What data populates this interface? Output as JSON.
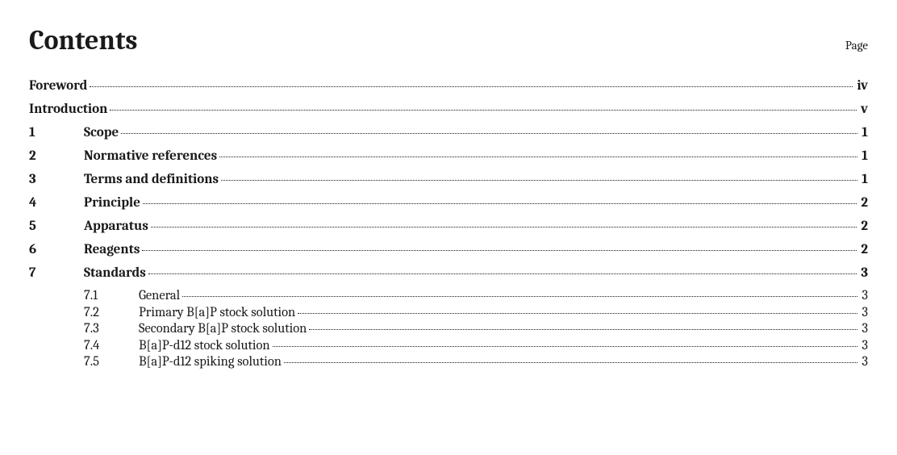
{
  "header": {
    "title": "Contents",
    "page_label": "Page"
  },
  "toc": [
    {
      "num": "",
      "title": "Foreword",
      "page": "iv"
    },
    {
      "num": "",
      "title": "Introduction",
      "page": "v"
    },
    {
      "num": "1",
      "title": "Scope",
      "page": "1"
    },
    {
      "num": "2",
      "title": "Normative references",
      "page": "1"
    },
    {
      "num": "3",
      "title": "Terms and definitions",
      "page": "1"
    },
    {
      "num": "4",
      "title": "Principle",
      "page": "2"
    },
    {
      "num": "5",
      "title": "Apparatus",
      "page": "2"
    },
    {
      "num": "6",
      "title": "Reagents",
      "page": "2"
    },
    {
      "num": "7",
      "title": "Standards",
      "page": "3",
      "children": [
        {
          "num": "7.1",
          "title": "General",
          "page": "3"
        },
        {
          "num": "7.2",
          "title": "Primary B[a]P stock solution",
          "page": "3"
        },
        {
          "num": "7.3",
          "title": "Secondary B[a]P stock solution",
          "page": "3"
        },
        {
          "num": "7.4",
          "title": "B[a]P-d12 stock solution",
          "page": "3"
        },
        {
          "num": "7.5",
          "title": "B[a]P-d12 spiking solution",
          "page": "3"
        }
      ]
    }
  ]
}
